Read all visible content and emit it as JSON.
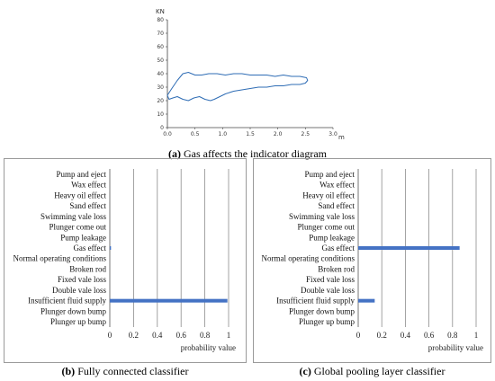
{
  "chart_data": [
    {
      "id": "a",
      "type": "line",
      "ylabel": "KN",
      "xlabel": "m",
      "xlim": [
        0,
        3.0
      ],
      "ylim": [
        0,
        80
      ],
      "x_ticks": [
        "0.0",
        "0.5",
        "1.0",
        "1.5",
        "2.0",
        "2.5",
        "3.0"
      ],
      "y_ticks": [
        "0",
        "10",
        "20",
        "30",
        "40",
        "50",
        "60",
        "70",
        "80"
      ],
      "grid": false,
      "series": [
        {
          "color": "#2f6db5",
          "x": [
            0.0,
            0.08,
            0.18,
            0.28,
            0.38,
            0.5,
            0.62,
            0.75,
            0.9,
            1.05,
            1.2,
            1.35,
            1.5,
            1.65,
            1.8,
            1.95,
            2.1,
            2.25,
            2.4,
            2.52,
            2.54,
            2.5,
            2.4,
            2.25,
            2.1,
            1.95,
            1.8,
            1.65,
            1.5,
            1.35,
            1.2,
            1.05,
            0.95,
            0.85,
            0.78,
            0.68,
            0.58,
            0.48,
            0.38,
            0.28,
            0.18,
            0.1,
            0.03,
            0.0
          ],
          "y": [
            24,
            29,
            35,
            40,
            41,
            39,
            39,
            40,
            40,
            39,
            40,
            40,
            39,
            39,
            39,
            38,
            39,
            38,
            38,
            37,
            35,
            33,
            32,
            32,
            31,
            31,
            30,
            30,
            29,
            28,
            27,
            25,
            23,
            21,
            20,
            21,
            23,
            22,
            20,
            21,
            23,
            22,
            21,
            24
          ]
        }
      ],
      "caption": {
        "label": "(a)",
        "text": " Gas affects the indicator diagram"
      }
    },
    {
      "id": "b",
      "type": "bar",
      "orientation": "horizontal",
      "categories": [
        "Pump and eject",
        "Wax effect",
        "Heavy oil effect",
        "Sand effect",
        "Swimming vale loss",
        "Plunger come out",
        "Pump leakage",
        "Gas effect",
        "Normal operating conditions",
        "Broken rod",
        "Fixed vale loss",
        "Double vale loss",
        "Insufficient fluid supply",
        "Plunger down bump",
        "Plunger up bump"
      ],
      "values": [
        0,
        0,
        0,
        0,
        0,
        0,
        0,
        0.01,
        0,
        0,
        0,
        0,
        0.99,
        0,
        0
      ],
      "xlabel": "probability value",
      "xlim": [
        0,
        1
      ],
      "x_ticks": [
        "0",
        "0.2",
        "0.4",
        "0.6",
        "0.8",
        "1"
      ],
      "grid": "vertical",
      "bar_color": "#4472c4",
      "caption": {
        "label": "(b)",
        "text": " Fully connected classifier"
      }
    },
    {
      "id": "c",
      "type": "bar",
      "orientation": "horizontal",
      "categories": [
        "Pump and eject",
        "Wax effect",
        "Heavy oil effect",
        "Sand effect",
        "Swimming vale loss",
        "Plunger come out",
        "Pump leakage",
        "Gas effect",
        "Normal operating conditions",
        "Broken rod",
        "Fixed vale loss",
        "Double vale loss",
        "Insufficient fluid supply",
        "Plunger down bump",
        "Plunger up bump"
      ],
      "values": [
        0,
        0,
        0,
        0,
        0,
        0,
        0,
        0.86,
        0,
        0,
        0,
        0,
        0.14,
        0,
        0
      ],
      "xlabel": "probability value",
      "xlim": [
        0,
        1
      ],
      "x_ticks": [
        "0",
        "0.2",
        "0.4",
        "0.6",
        "0.8",
        "1"
      ],
      "grid": "vertical",
      "bar_color": "#4472c4",
      "caption": {
        "label": "(c)",
        "text": " Global pooling layer classifier"
      }
    }
  ]
}
